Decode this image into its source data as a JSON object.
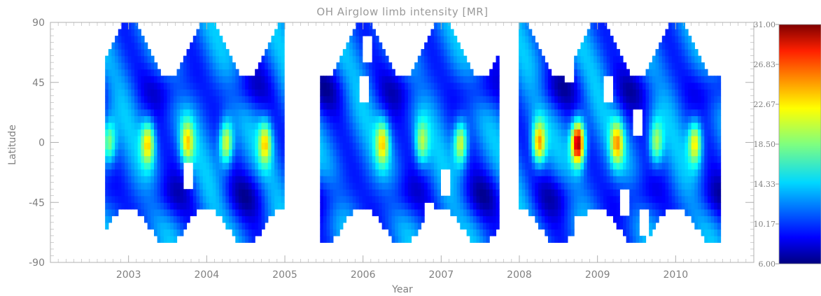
{
  "chart_data": {
    "type": "heatmap",
    "title": "OH Airglow limb intensity [MR]",
    "xlabel": "Year",
    "ylabel": "Latitude",
    "xlim": [
      2002.0,
      2011.0
    ],
    "ylim": [
      -90,
      90
    ],
    "x_ticks": [
      "2003",
      "2004",
      "2005",
      "2006",
      "2007",
      "2008",
      "2009",
      "2010"
    ],
    "y_ticks": [
      "90",
      "45",
      "0",
      "-45",
      "-90"
    ],
    "colorbar": {
      "range": [
        6.0,
        31.0
      ],
      "tick_labels": [
        "31.00",
        "26.83",
        "22.67",
        "18.50",
        "14.33",
        "10.17",
        "6.00"
      ],
      "colormap": "jet"
    },
    "data_gaps": [
      [
        2005.0,
        2005.45
      ],
      [
        2007.75,
        2008.0
      ]
    ],
    "equatorial_maxima": [
      {
        "year": 2002.75,
        "value": 19.5
      },
      {
        "year": 2003.25,
        "value": 21.5
      },
      {
        "year": 2003.75,
        "value": 20.5
      },
      {
        "year": 2004.25,
        "value": 22.0
      },
      {
        "year": 2004.75,
        "value": 21.0
      },
      {
        "year": 2006.25,
        "value": 20.5
      },
      {
        "year": 2006.75,
        "value": 18.5
      },
      {
        "year": 2007.25,
        "value": 21.5
      },
      {
        "year": 2008.25,
        "value": 23.5
      },
      {
        "year": 2008.75,
        "value": 31.0
      },
      {
        "year": 2009.25,
        "value": 21.5
      },
      {
        "year": 2009.75,
        "value": 19.5
      },
      {
        "year": 2010.25,
        "value": 22.0
      }
    ],
    "colors": {
      "axis": "#b0b0b0",
      "text": "#808080"
    }
  }
}
